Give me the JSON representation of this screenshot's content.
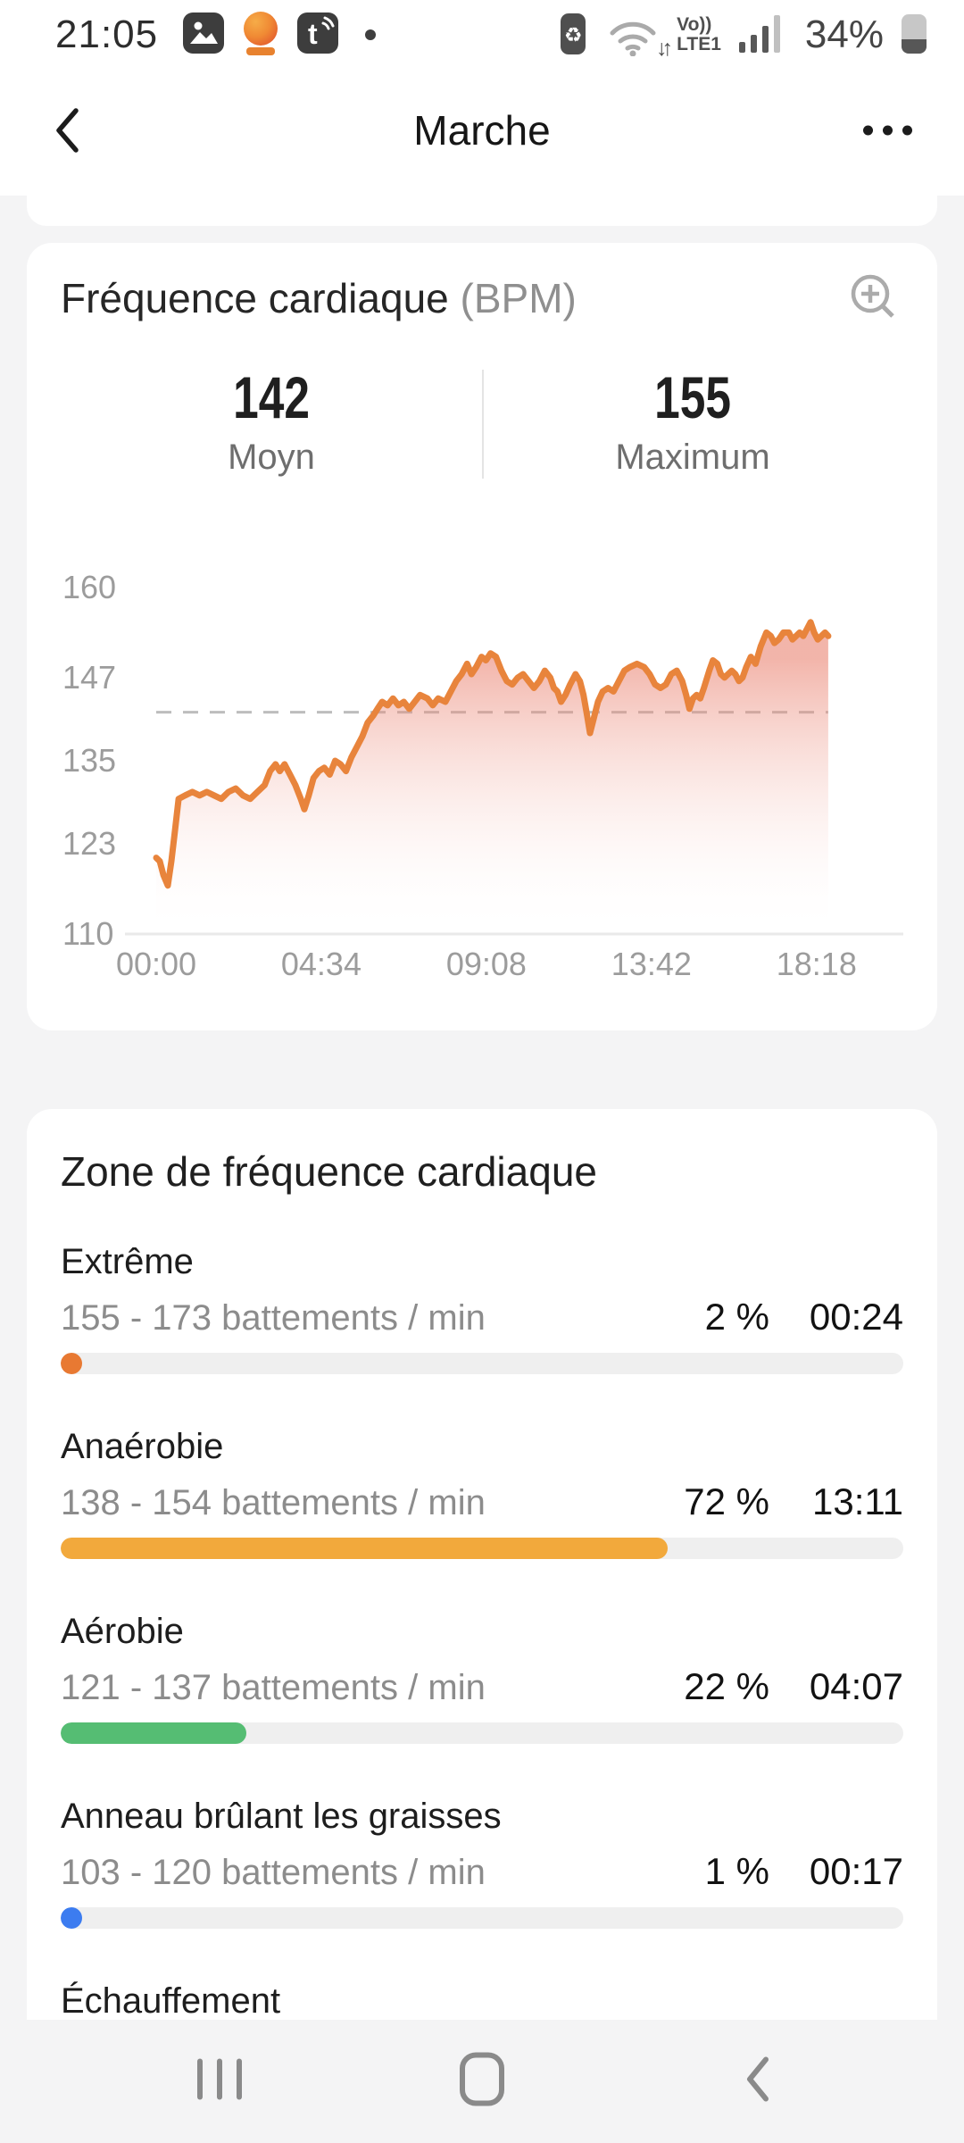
{
  "status_bar": {
    "time": "21:05",
    "battery_percent": "34%",
    "volte_line1": "Vo))",
    "volte_line2": "LTE1",
    "icons": {
      "left": [
        "gallery-app-icon",
        "mango-app-icon",
        "t-app-icon",
        "notification-dot"
      ],
      "right": [
        "battery-saver-icon",
        "wifi-icon",
        "volte-indicator",
        "signal-bars-icon",
        "battery-icon"
      ],
      "battery_saver_glyph": "♻"
    }
  },
  "nav_bar": {
    "title": "Marche"
  },
  "hr_card": {
    "title": "Fréquence cardiaque",
    "unit": "(BPM)",
    "stats": [
      {
        "value": "142",
        "label": "Moyn"
      },
      {
        "value": "155",
        "label": "Maximum"
      }
    ]
  },
  "chart_data": {
    "type": "area",
    "title": "Fréquence cardiaque (BPM)",
    "ylabel": "BPM",
    "ylim": [
      110,
      160
    ],
    "y_ticks": [
      160,
      147,
      135,
      123,
      110
    ],
    "x_ticks": [
      {
        "label": "00:00",
        "min": 0
      },
      {
        "label": "04:34",
        "min": 4.5667
      },
      {
        "label": "09:08",
        "min": 9.1333
      },
      {
        "label": "13:42",
        "min": 13.7
      },
      {
        "label": "18:18",
        "min": 18.2667
      }
    ],
    "avg_line": 142,
    "max_value": 155,
    "avg_value": 142,
    "grid": "off",
    "legend": "none",
    "line_color": "#E8843C",
    "fill_top_color": "rgba(230,107,86,0.5)",
    "avg_line_color": "#bdbdbd",
    "axis_label_color": "#9c9c9c",
    "series": [
      {
        "name": "Fréquence cardiaque",
        "points": [
          [
            0,
            121
          ],
          [
            0.1,
            120.5
          ],
          [
            0.2,
            118.5
          ],
          [
            0.32,
            117
          ],
          [
            0.42,
            120.5
          ],
          [
            0.52,
            125
          ],
          [
            0.62,
            129.5
          ],
          [
            0.8,
            130
          ],
          [
            1,
            130.5
          ],
          [
            1.2,
            130
          ],
          [
            1.4,
            130.5
          ],
          [
            1.6,
            130
          ],
          [
            1.8,
            129.5
          ],
          [
            2,
            130.5
          ],
          [
            2.2,
            131
          ],
          [
            2.4,
            130
          ],
          [
            2.6,
            129.5
          ],
          [
            2.8,
            130.5
          ],
          [
            3,
            131.5
          ],
          [
            3.15,
            133.5
          ],
          [
            3.3,
            134.5
          ],
          [
            3.42,
            133.5
          ],
          [
            3.55,
            134.5
          ],
          [
            3.7,
            133
          ],
          [
            3.85,
            131.5
          ],
          [
            4,
            129.5
          ],
          [
            4.1,
            128
          ],
          [
            4.22,
            130
          ],
          [
            4.35,
            132.5
          ],
          [
            4.5,
            133.5
          ],
          [
            4.65,
            134
          ],
          [
            4.8,
            133
          ],
          [
            4.95,
            135
          ],
          [
            5.1,
            134.5
          ],
          [
            5.25,
            133.5
          ],
          [
            5.4,
            135.5
          ],
          [
            5.55,
            137
          ],
          [
            5.7,
            138.5
          ],
          [
            5.85,
            140.5
          ],
          [
            6,
            141.5
          ],
          [
            6.12,
            142.5
          ],
          [
            6.25,
            143.5
          ],
          [
            6.4,
            143
          ],
          [
            6.55,
            144
          ],
          [
            6.7,
            143
          ],
          [
            6.85,
            143.5
          ],
          [
            7,
            142.5
          ],
          [
            7.15,
            143.5
          ],
          [
            7.3,
            144.5
          ],
          [
            7.5,
            144
          ],
          [
            7.65,
            143
          ],
          [
            7.8,
            144
          ],
          [
            8,
            143.5
          ],
          [
            8.15,
            145
          ],
          [
            8.3,
            146.5
          ],
          [
            8.45,
            147.5
          ],
          [
            8.6,
            149
          ],
          [
            8.72,
            147.5
          ],
          [
            8.85,
            148.5
          ],
          [
            9,
            150
          ],
          [
            9.12,
            149.5
          ],
          [
            9.25,
            150.5
          ],
          [
            9.4,
            150
          ],
          [
            9.55,
            148
          ],
          [
            9.7,
            146.5
          ],
          [
            9.85,
            146
          ],
          [
            10,
            147
          ],
          [
            10.15,
            147.5
          ],
          [
            10.3,
            146.5
          ],
          [
            10.45,
            145.5
          ],
          [
            10.6,
            146.5
          ],
          [
            10.75,
            148
          ],
          [
            10.9,
            147
          ],
          [
            11,
            145.5
          ],
          [
            11.1,
            145
          ],
          [
            11.2,
            143.5
          ],
          [
            11.32,
            144.5
          ],
          [
            11.45,
            146
          ],
          [
            11.6,
            147.5
          ],
          [
            11.72,
            146.5
          ],
          [
            11.82,
            144.5
          ],
          [
            11.92,
            141.5
          ],
          [
            12,
            139
          ],
          [
            12.1,
            141
          ],
          [
            12.22,
            143.5
          ],
          [
            12.35,
            145
          ],
          [
            12.5,
            145.5
          ],
          [
            12.65,
            145
          ],
          [
            12.8,
            146.5
          ],
          [
            12.95,
            148
          ],
          [
            13.1,
            148.5
          ],
          [
            13.3,
            149
          ],
          [
            13.5,
            148.5
          ],
          [
            13.65,
            147.5
          ],
          [
            13.8,
            146
          ],
          [
            13.95,
            145.5
          ],
          [
            14.1,
            146
          ],
          [
            14.25,
            147.5
          ],
          [
            14.4,
            148
          ],
          [
            14.55,
            146.5
          ],
          [
            14.66,
            144.5
          ],
          [
            14.75,
            142.5
          ],
          [
            14.85,
            144
          ],
          [
            14.95,
            144.5
          ],
          [
            15.05,
            144
          ],
          [
            15.15,
            145.5
          ],
          [
            15.3,
            148
          ],
          [
            15.4,
            149.5
          ],
          [
            15.52,
            149
          ],
          [
            15.62,
            147.5
          ],
          [
            15.72,
            147
          ],
          [
            15.82,
            147.5
          ],
          [
            15.92,
            148
          ],
          [
            16.02,
            147.5
          ],
          [
            16.12,
            146.5
          ],
          [
            16.22,
            147
          ],
          [
            16.32,
            148.5
          ],
          [
            16.45,
            150
          ],
          [
            16.58,
            149
          ],
          [
            16.72,
            151.5
          ],
          [
            16.88,
            153.5
          ],
          [
            17,
            153
          ],
          [
            17.1,
            152
          ],
          [
            17.22,
            152.5
          ],
          [
            17.35,
            153.5
          ],
          [
            17.5,
            153.5
          ],
          [
            17.6,
            152.5
          ],
          [
            17.7,
            153
          ],
          [
            17.8,
            153.5
          ],
          [
            17.9,
            153
          ],
          [
            18,
            154
          ],
          [
            18.1,
            155
          ],
          [
            18.2,
            153.5
          ],
          [
            18.3,
            152.5
          ],
          [
            18.4,
            153
          ],
          [
            18.5,
            153.5
          ],
          [
            18.59,
            153
          ]
        ]
      }
    ]
  },
  "zones_card": {
    "title": "Zone de fréquence cardiaque",
    "zones": [
      {
        "name": "Extrême",
        "range": "155 - 173 battements / min",
        "percent": "2 %",
        "time": "00:24",
        "value": 2,
        "bar_color": "#E87932"
      },
      {
        "name": "Anaérobie",
        "range": "138 - 154 battements / min",
        "percent": "72 %",
        "time": "13:11",
        "value": 72,
        "bar_color": "#F2A93C"
      },
      {
        "name": "Aérobie",
        "range": "121 - 137 battements / min",
        "percent": "22 %",
        "time": "04:07",
        "value": 22,
        "bar_color": "#55BD73"
      },
      {
        "name": "Anneau brûlant les graisses",
        "range": "103 - 120 battements / min",
        "percent": "1 %",
        "time": "00:17",
        "value": 1,
        "bar_color": "#3C7CF0"
      },
      {
        "name": "Échauffement"
      }
    ]
  }
}
